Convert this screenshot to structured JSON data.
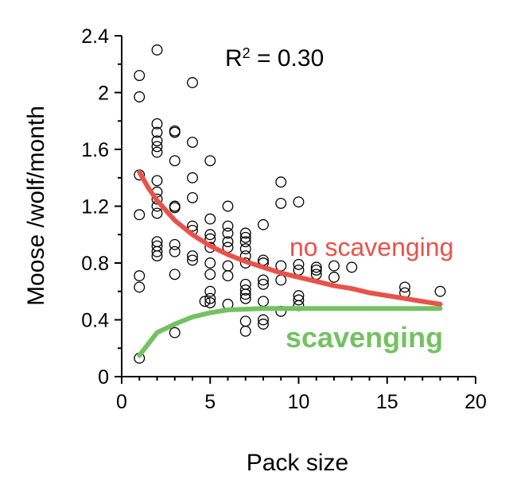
{
  "chart_data": {
    "type": "scatter",
    "xlabel": "Pack size",
    "ylabel": "Moose /wolf/month",
    "xlim": [
      0,
      20
    ],
    "ylim": [
      0,
      2.4
    ],
    "x_ticks": [
      "0",
      "5",
      "10",
      "15",
      "20"
    ],
    "y_ticks": [
      "0",
      "0.4",
      "0.8",
      "1.2",
      "1.6",
      "2",
      "2.4"
    ],
    "x_minor_step": 1,
    "y_minor_step": 0.2,
    "annotation": {
      "prefix": "R",
      "superscript": "2",
      "suffix": " = 0.30"
    },
    "points": [
      {
        "x": 1,
        "y": 2.12
      },
      {
        "x": 1,
        "y": 1.97
      },
      {
        "x": 1,
        "y": 1.42
      },
      {
        "x": 1,
        "y": 1.14
      },
      {
        "x": 1,
        "y": 0.71
      },
      {
        "x": 1,
        "y": 0.63
      },
      {
        "x": 1,
        "y": 0.13
      },
      {
        "x": 2,
        "y": 2.3
      },
      {
        "x": 2,
        "y": 1.78
      },
      {
        "x": 2,
        "y": 1.72
      },
      {
        "x": 2,
        "y": 1.66
      },
      {
        "x": 2,
        "y": 1.62
      },
      {
        "x": 2,
        "y": 1.58
      },
      {
        "x": 2,
        "y": 1.38
      },
      {
        "x": 2,
        "y": 1.3
      },
      {
        "x": 2,
        "y": 1.25
      },
      {
        "x": 2,
        "y": 1.2
      },
      {
        "x": 2,
        "y": 1.15
      },
      {
        "x": 2,
        "y": 0.95
      },
      {
        "x": 2,
        "y": 0.92
      },
      {
        "x": 2,
        "y": 0.88
      },
      {
        "x": 2,
        "y": 0.85
      },
      {
        "x": 3,
        "y": 1.73
      },
      {
        "x": 3,
        "y": 1.72
      },
      {
        "x": 3,
        "y": 1.52
      },
      {
        "x": 3,
        "y": 1.2
      },
      {
        "x": 3,
        "y": 1.19
      },
      {
        "x": 3,
        "y": 0.93
      },
      {
        "x": 3,
        "y": 0.88
      },
      {
        "x": 3,
        "y": 0.72
      },
      {
        "x": 3,
        "y": 0.31
      },
      {
        "x": 4,
        "y": 2.07
      },
      {
        "x": 4,
        "y": 1.65
      },
      {
        "x": 4,
        "y": 1.4
      },
      {
        "x": 4,
        "y": 1.26
      },
      {
        "x": 4,
        "y": 1.06
      },
      {
        "x": 4,
        "y": 1.03
      },
      {
        "x": 4,
        "y": 0.85
      },
      {
        "x": 4,
        "y": 0.82
      },
      {
        "x": 5,
        "y": 1.52
      },
      {
        "x": 5,
        "y": 1.11
      },
      {
        "x": 5,
        "y": 1.0
      },
      {
        "x": 5,
        "y": 0.97
      },
      {
        "x": 5,
        "y": 0.91
      },
      {
        "x": 5,
        "y": 0.8
      },
      {
        "x": 5,
        "y": 0.72
      },
      {
        "x": 5,
        "y": 0.6
      },
      {
        "x": 5,
        "y": 0.55
      },
      {
        "x": 5,
        "y": 0.52
      },
      {
        "x": 4.7,
        "y": 0.53
      },
      {
        "x": 6,
        "y": 1.2
      },
      {
        "x": 6,
        "y": 1.06
      },
      {
        "x": 6,
        "y": 1.01
      },
      {
        "x": 6,
        "y": 0.95
      },
      {
        "x": 6,
        "y": 0.91
      },
      {
        "x": 6,
        "y": 0.78
      },
      {
        "x": 6,
        "y": 0.71
      },
      {
        "x": 6,
        "y": 0.51
      },
      {
        "x": 7,
        "y": 1.01
      },
      {
        "x": 7,
        "y": 0.98
      },
      {
        "x": 7,
        "y": 0.95
      },
      {
        "x": 7,
        "y": 0.9
      },
      {
        "x": 7,
        "y": 0.85
      },
      {
        "x": 7,
        "y": 0.8
      },
      {
        "x": 7,
        "y": 0.65
      },
      {
        "x": 7,
        "y": 0.61
      },
      {
        "x": 7,
        "y": 0.58
      },
      {
        "x": 7,
        "y": 0.55
      },
      {
        "x": 7,
        "y": 0.39
      },
      {
        "x": 7,
        "y": 0.32
      },
      {
        "x": 8,
        "y": 1.07
      },
      {
        "x": 8,
        "y": 0.82
      },
      {
        "x": 8,
        "y": 0.8
      },
      {
        "x": 8,
        "y": 0.68
      },
      {
        "x": 8,
        "y": 0.65
      },
      {
        "x": 8,
        "y": 0.53
      },
      {
        "x": 8,
        "y": 0.4
      },
      {
        "x": 8,
        "y": 0.37
      },
      {
        "x": 9,
        "y": 1.37
      },
      {
        "x": 9,
        "y": 1.22
      },
      {
        "x": 9,
        "y": 0.78
      },
      {
        "x": 9,
        "y": 0.68
      },
      {
        "x": 9,
        "y": 0.46
      },
      {
        "x": 10,
        "y": 1.23
      },
      {
        "x": 10,
        "y": 0.79
      },
      {
        "x": 10,
        "y": 0.75
      },
      {
        "x": 10,
        "y": 0.57
      },
      {
        "x": 10,
        "y": 0.54
      },
      {
        "x": 10,
        "y": 0.5
      },
      {
        "x": 11,
        "y": 0.77
      },
      {
        "x": 11,
        "y": 0.75
      },
      {
        "x": 11,
        "y": 0.72
      },
      {
        "x": 12,
        "y": 0.78
      },
      {
        "x": 12,
        "y": 0.7
      },
      {
        "x": 13,
        "y": 0.77
      },
      {
        "x": 16,
        "y": 0.63
      },
      {
        "x": 16,
        "y": 0.59
      },
      {
        "x": 18,
        "y": 0.6
      }
    ],
    "series": [
      {
        "name": "no scavenging",
        "color": "#e8524a",
        "x": [
          1,
          1.5,
          2,
          3,
          4,
          5,
          6,
          7,
          8,
          9,
          10,
          11,
          12,
          13,
          14,
          15,
          16,
          17,
          18
        ],
        "values": [
          1.44,
          1.33,
          1.24,
          1.1,
          1.0,
          0.92,
          0.86,
          0.81,
          0.77,
          0.73,
          0.7,
          0.67,
          0.64,
          0.62,
          0.59,
          0.57,
          0.55,
          0.53,
          0.51
        ]
      },
      {
        "name": "scavenging",
        "color": "#74c162",
        "x": [
          1,
          1.5,
          2,
          3,
          4,
          5,
          6,
          8,
          10,
          12,
          14,
          16,
          18
        ],
        "values": [
          0.15,
          0.23,
          0.31,
          0.37,
          0.42,
          0.45,
          0.47,
          0.48,
          0.48,
          0.48,
          0.48,
          0.48,
          0.48
        ]
      }
    ]
  }
}
